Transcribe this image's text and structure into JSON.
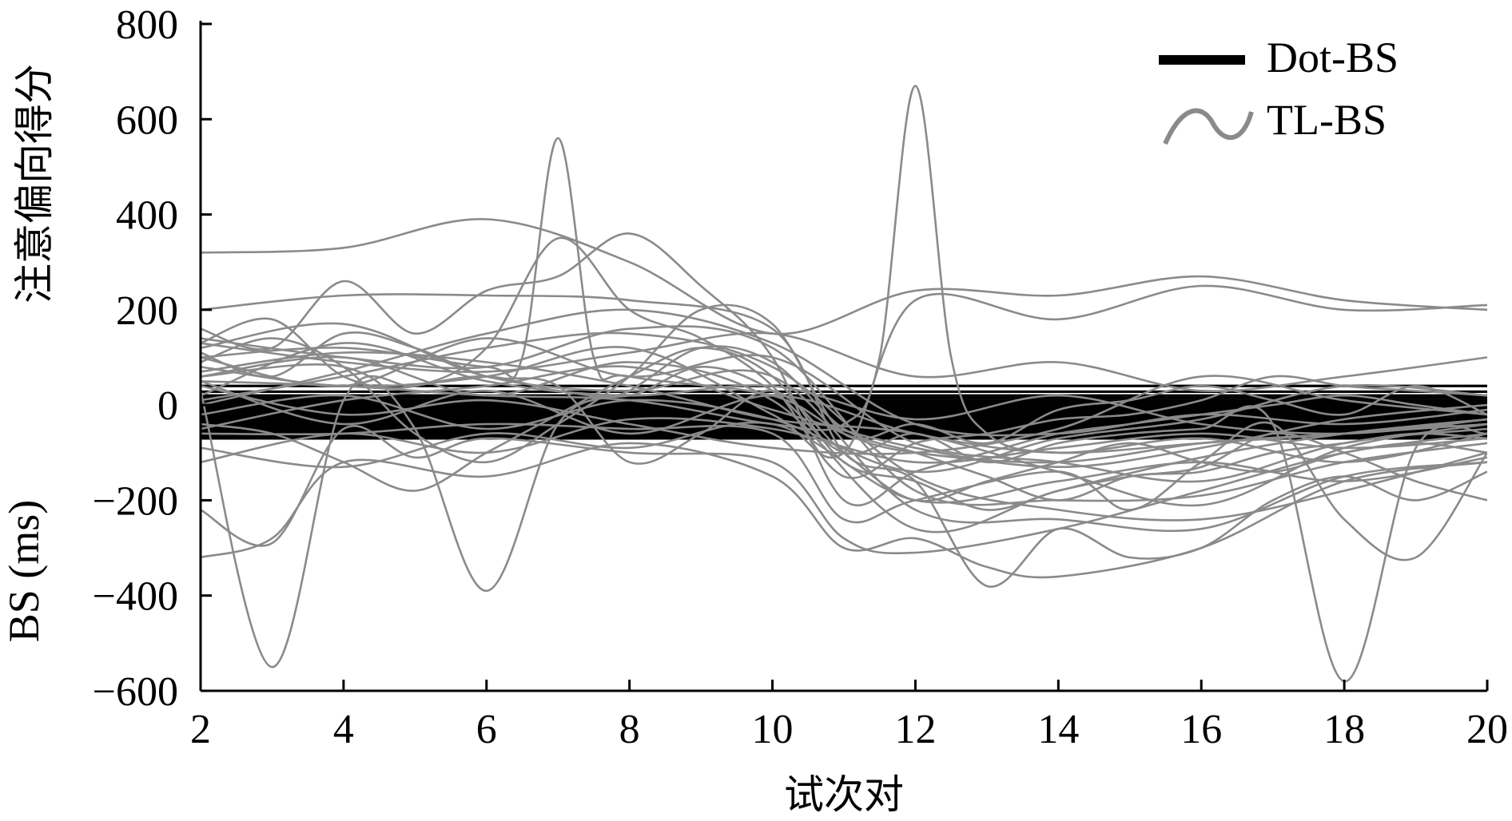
{
  "chart_data": {
    "type": "line",
    "title": "",
    "xlabel": "试次对",
    "ylabel_line1": "注意偏向得分",
    "ylabel_line2": "BS (ms)",
    "xlim": [
      2,
      20
    ],
    "ylim": [
      -600,
      800
    ],
    "xticks": [
      2,
      4,
      6,
      8,
      10,
      12,
      14,
      16,
      18,
      20
    ],
    "yticks": [
      -600,
      -400,
      -200,
      0,
      200,
      400,
      600,
      800
    ],
    "ytick_labels": [
      "−600",
      "−400",
      "−200",
      "0",
      "200",
      "400",
      "600",
      "800"
    ],
    "grid": false,
    "legend_position": "top-right",
    "series": [
      {
        "name": "Dot-BS",
        "color": "#000000",
        "note_levels_constant_across_trials": true,
        "levels": [
          40,
          28,
          20,
          15,
          10,
          6,
          2,
          -2,
          -5,
          -8,
          -11,
          -14,
          -17,
          -20,
          -23,
          -26,
          -29,
          -32,
          -35,
          -38,
          -41,
          -44,
          -47,
          -50,
          -53,
          -56,
          -60,
          -65,
          -70
        ]
      },
      {
        "name": "TL-BS",
        "color": "#8a8a8a",
        "lines": [
          {
            "x": [
              2,
              4,
              6,
              8,
              10,
              12,
              14,
              16,
              18,
              20
            ],
            "y": [
              320,
              330,
              390,
              300,
              150,
              240,
              230,
              270,
              220,
              200
            ]
          },
          {
            "x": [
              2,
              3,
              4,
              5,
              6,
              7,
              8,
              9,
              10,
              11,
              12,
              13,
              14,
              15,
              16,
              17,
              18,
              19,
              20
            ],
            "y": [
              30,
              -550,
              10,
              40,
              60,
              30,
              20,
              80,
              30,
              -100,
              -60,
              -120,
              -80,
              -60,
              -50,
              -40,
              -580,
              -90,
              -60
            ]
          },
          {
            "x": [
              2,
              4,
              5,
              6,
              7,
              8,
              9,
              10,
              11,
              12,
              13,
              14,
              15,
              16,
              17,
              18,
              19,
              20
            ],
            "y": [
              60,
              80,
              -50,
              -390,
              -40,
              30,
              120,
              90,
              -50,
              -100,
              -150,
              -200,
              -150,
              -140,
              -100,
              -80,
              -60,
              -70
            ]
          },
          {
            "x": [
              2,
              4,
              6,
              6.5,
              7,
              7.5,
              8,
              10,
              11,
              12,
              14,
              16,
              18,
              20
            ],
            "y": [
              100,
              120,
              80,
              100,
              560,
              100,
              60,
              20,
              -60,
              -100,
              -120,
              -80,
              -60,
              -40
            ]
          },
          {
            "x": [
              2,
              4,
              6,
              8,
              10,
              11,
              11.5,
              12,
              12.5,
              13,
              14,
              16,
              18,
              20
            ],
            "y": [
              50,
              40,
              20,
              10,
              -40,
              -40,
              100,
              670,
              100,
              -60,
              -100,
              -80,
              -60,
              -30
            ]
          },
          {
            "x": [
              2,
              3,
              4,
              6,
              8,
              10,
              11,
              12,
              13,
              14,
              16,
              18,
              20
            ],
            "y": [
              -320,
              -280,
              -120,
              -150,
              -80,
              -150,
              -300,
              -280,
              -340,
              -360,
              -300,
              -160,
              -120
            ]
          },
          {
            "x": [
              2,
              3,
              4,
              5,
              6,
              8,
              10,
              11,
              12,
              14,
              16,
              18,
              20
            ],
            "y": [
              -220,
              -290,
              -50,
              -110,
              -70,
              -100,
              -120,
              -280,
              -310,
              -260,
              -180,
              -100,
              -60
            ]
          },
          {
            "x": [
              2,
              4,
              6,
              8,
              10,
              11,
              12,
              13,
              14,
              15,
              16,
              17,
              18,
              19,
              20
            ],
            "y": [
              200,
              230,
              230,
              220,
              160,
              -100,
              -160,
              -380,
              -260,
              -320,
              -300,
              -200,
              -150,
              -200,
              -140
            ]
          },
          {
            "x": [
              2,
              3,
              4,
              5,
              6,
              7,
              8,
              9,
              10,
              11,
              12,
              13,
              14,
              15,
              16,
              17,
              18,
              19,
              20
            ],
            "y": [
              130,
              180,
              60,
              40,
              120,
              350,
              200,
              140,
              40,
              -150,
              -80,
              -60,
              -30,
              -20,
              10,
              60,
              40,
              30,
              20
            ]
          },
          {
            "x": [
              2,
              3,
              4,
              5,
              6,
              7,
              8,
              9,
              10,
              11,
              12,
              13,
              14,
              15,
              16,
              17,
              18,
              19,
              20
            ],
            "y": [
              160,
              120,
              260,
              150,
              240,
              270,
              360,
              250,
              100,
              -200,
              -140,
              -100,
              -60,
              -40,
              -20,
              0,
              20,
              0,
              -20
            ]
          },
          {
            "x": [
              2,
              4,
              6,
              8,
              10,
              11,
              12,
              14,
              16,
              18,
              20
            ],
            "y": [
              80,
              40,
              60,
              120,
              -20,
              -100,
              220,
              180,
              250,
              200,
              210
            ]
          },
          {
            "x": [
              2,
              4,
              6,
              8,
              10,
              11,
              12,
              14,
              15,
              16,
              17,
              18,
              19,
              20
            ],
            "y": [
              -60,
              -60,
              -40,
              -50,
              -60,
              -240,
              -200,
              -140,
              -220,
              -120,
              -40,
              -240,
              -320,
              -100
            ]
          },
          {
            "x": [
              2,
              3,
              4,
              5,
              6,
              7,
              8,
              9,
              10,
              11,
              12,
              13,
              14,
              15,
              16,
              17,
              18,
              19,
              20
            ],
            "y": [
              90,
              140,
              80,
              -60,
              -120,
              -40,
              60,
              200,
              170,
              -60,
              -40,
              -80,
              -10,
              10,
              40,
              10,
              -20,
              40,
              -20
            ]
          },
          {
            "x": [
              2,
              3,
              4,
              5,
              6,
              7,
              8,
              9,
              10,
              11,
              12,
              13,
              14,
              15,
              16,
              17,
              18,
              19,
              20
            ],
            "y": [
              110,
              60,
              150,
              120,
              60,
              40,
              -120,
              -60,
              30,
              -100,
              -200,
              -160,
              -120,
              -80,
              -120,
              -140,
              -100,
              -80,
              -100
            ]
          },
          {
            "x": [
              2,
              4,
              6,
              8,
              10,
              12,
              14,
              16,
              18,
              20
            ],
            "y": [
              140,
              100,
              80,
              160,
              120,
              -180,
              -200,
              -190,
              -120,
              -80
            ]
          },
          {
            "x": [
              2,
              4,
              6,
              8,
              10,
              12,
              14,
              16,
              18,
              20
            ],
            "y": [
              70,
              110,
              90,
              40,
              -30,
              -60,
              -140,
              -210,
              -90,
              -40
            ]
          },
          {
            "x": [
              2,
              4,
              6,
              8,
              10,
              12,
              14,
              16,
              18,
              20
            ],
            "y": [
              -120,
              -60,
              -100,
              -30,
              -50,
              -120,
              -90,
              -60,
              -90,
              -70
            ]
          },
          {
            "x": [
              2,
              4,
              6,
              8,
              10,
              12,
              14,
              16,
              18,
              20
            ],
            "y": [
              10,
              60,
              120,
              150,
              80,
              -150,
              -220,
              -240,
              -180,
              -100
            ]
          },
          {
            "x": [
              2,
              3,
              4,
              5,
              6,
              7,
              8,
              9,
              10,
              11,
              12,
              13,
              14,
              15,
              16,
              17,
              18,
              19,
              20
            ],
            "y": [
              -40,
              -60,
              -120,
              -180,
              -100,
              -20,
              60,
              120,
              60,
              -120,
              -160,
              -220,
              -180,
              -150,
              -130,
              -60,
              -100,
              -160,
              -200
            ]
          },
          {
            "x": [
              2,
              4,
              6,
              8,
              10,
              12,
              14,
              16,
              18,
              20
            ],
            "y": [
              130,
              90,
              70,
              110,
              150,
              60,
              90,
              30,
              60,
              100
            ]
          },
          {
            "x": [
              2,
              4,
              6,
              8,
              10,
              12,
              14,
              16,
              18,
              20
            ],
            "y": [
              40,
              -20,
              10,
              -40,
              -90,
              -100,
              -50,
              60,
              10,
              -20
            ]
          },
          {
            "x": [
              2,
              4,
              6,
              8,
              10,
              12,
              14,
              16,
              18,
              20
            ],
            "y": [
              -90,
              -130,
              -60,
              -90,
              -40,
              -200,
              -160,
              -120,
              -160,
              -110
            ]
          },
          {
            "x": [
              2,
              4,
              6,
              8,
              10,
              12,
              14,
              16,
              18,
              20
            ],
            "y": [
              20,
              130,
              50,
              20,
              40,
              -30,
              20,
              -40,
              -60,
              -30
            ]
          },
          {
            "x": [
              2,
              4,
              6,
              8,
              10,
              12,
              14,
              16,
              18,
              20
            ],
            "y": [
              100,
              40,
              140,
              60,
              100,
              -80,
              -120,
              -160,
              -80,
              -50
            ]
          },
          {
            "x": [
              2,
              4,
              6,
              8,
              10,
              12,
              14,
              16,
              18,
              20
            ],
            "y": [
              60,
              100,
              20,
              90,
              10,
              -260,
              -180,
              -110,
              -60,
              -30
            ]
          },
          {
            "x": [
              2,
              4,
              6,
              8,
              10,
              12,
              14,
              16,
              18,
              20
            ],
            "y": [
              -20,
              20,
              -50,
              10,
              -30,
              -140,
              -70,
              -30,
              40,
              20
            ]
          },
          {
            "x": [
              2,
              4,
              6,
              8,
              10,
              12,
              14,
              16,
              18,
              20
            ],
            "y": [
              50,
              -40,
              30,
              -60,
              20,
              -60,
              -100,
              -70,
              -120,
              -60
            ]
          },
          {
            "x": [
              2,
              4,
              6,
              8,
              10,
              12,
              14,
              16,
              18,
              20
            ],
            "y": [
              0,
              70,
              150,
              200,
              130,
              -40,
              -60,
              -20,
              -40,
              -10
            ]
          },
          {
            "x": [
              2,
              4,
              6,
              8,
              10,
              12,
              14,
              16,
              18,
              20
            ],
            "y": [
              120,
              170,
              60,
              30,
              60,
              -220,
              -240,
              -260,
              -150,
              -120
            ]
          },
          {
            "x": [
              2,
              4,
              6,
              8,
              10,
              12,
              14,
              16,
              18,
              20
            ],
            "y": [
              -50,
              10,
              40,
              80,
              -10,
              -90,
              -130,
              -90,
              -30,
              0
            ]
          }
        ]
      }
    ]
  },
  "legend": {
    "items": [
      {
        "label": "Dot-BS",
        "color": "#000000",
        "glyph": "straight-line"
      },
      {
        "label": "TL-BS",
        "color": "#8a8a8a",
        "glyph": "wave-line"
      }
    ]
  }
}
